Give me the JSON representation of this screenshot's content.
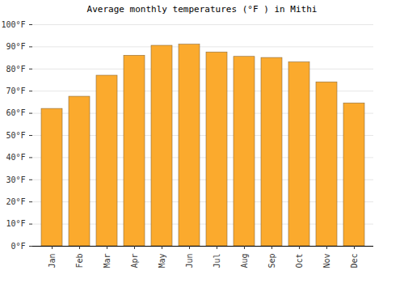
{
  "chart_data": {
    "type": "bar",
    "title": "Average monthly temperatures (°F ) in Mithi",
    "categories": [
      "Jan",
      "Feb",
      "Mar",
      "Apr",
      "May",
      "Jun",
      "Jul",
      "Aug",
      "Sep",
      "Oct",
      "Nov",
      "Dec"
    ],
    "values": [
      62,
      67.5,
      77,
      86,
      90.5,
      91,
      87.5,
      85.5,
      85,
      83,
      74,
      64.5
    ],
    "color": "#fbaa2d",
    "ylim": [
      0,
      100
    ],
    "yticks": [
      {
        "value": 0,
        "label": "0°F"
      },
      {
        "value": 10,
        "label": "10°F"
      },
      {
        "value": 20,
        "label": "20°F"
      },
      {
        "value": 30,
        "label": "30°F"
      },
      {
        "value": 40,
        "label": "40°F"
      },
      {
        "value": 50,
        "label": "50°F"
      },
      {
        "value": 60,
        "label": "60°F"
      },
      {
        "value": 70,
        "label": "70°F"
      },
      {
        "value": 80,
        "label": "80°F"
      },
      {
        "value": 90,
        "label": "90°F"
      },
      {
        "value": 100,
        "label": "100°F"
      }
    ],
    "grid": true
  }
}
